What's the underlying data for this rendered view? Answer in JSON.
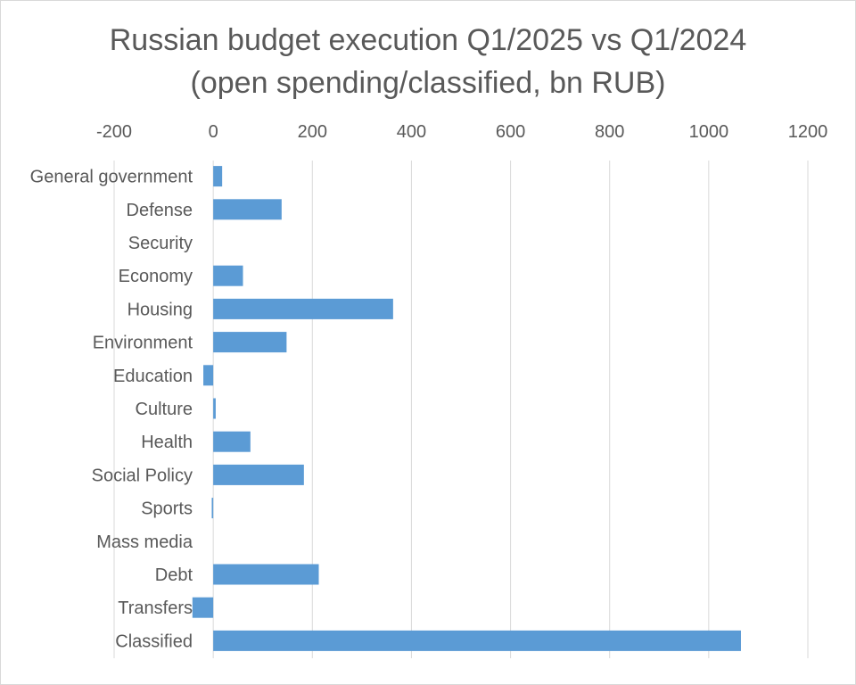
{
  "chart_data": {
    "type": "bar",
    "orientation": "horizontal",
    "title": "Russian budget execution Q1/2025 vs Q1/2024",
    "subtitle": "(open spending/classified, bn RUB)",
    "xlabel": "",
    "ylabel": "",
    "xlim": [
      -200,
      1200
    ],
    "xticks": [
      -200,
      0,
      200,
      400,
      600,
      800,
      1000,
      1200
    ],
    "xtick_labels": [
      "-200",
      "0",
      "200",
      "400",
      "600",
      "800",
      "1000",
      "1200"
    ],
    "x_axis_position": "top",
    "grid": true,
    "legend": "none",
    "bar_color": "#5b9bd5",
    "categories": [
      "General government",
      "Defense",
      "Security",
      "Economy",
      "Housing",
      "Environment",
      "Education",
      "Culture",
      "Health",
      "Social Policy",
      "Sports",
      "Mass media",
      "Debt",
      "Transfers",
      "Classified"
    ],
    "values": [
      18,
      138,
      0,
      60,
      363,
      148,
      -20,
      5,
      75,
      183,
      -3,
      0,
      213,
      -42,
      1065
    ]
  }
}
